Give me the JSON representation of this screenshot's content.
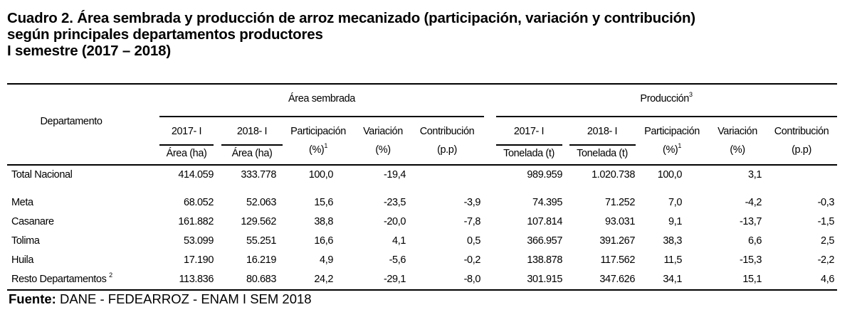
{
  "title": {
    "line1": "Cuadro 2. Área sembrada y producción de arroz mecanizado (participación, variación y contribución)",
    "line2": "según principales departamentos productores",
    "line3": "I semestre (2017 – 2018)"
  },
  "table": {
    "dept_header": "Departamento",
    "groups": [
      {
        "label": "Área sembrada",
        "sup": "",
        "columns": [
          {
            "top": "2017- I",
            "bottom": "Área (ha)"
          },
          {
            "top": "2018- I",
            "bottom": "Área (ha)"
          },
          {
            "top": "Participación",
            "bottom": "(%)",
            "sup": "1"
          },
          {
            "top": "Variación",
            "bottom": "(%)"
          },
          {
            "top": "Contribución",
            "bottom": "(p.p)"
          }
        ]
      },
      {
        "label": "Producción",
        "sup": "3",
        "columns": [
          {
            "top": "2017- I",
            "bottom": "Tonelada (t)"
          },
          {
            "top": "2018- I",
            "bottom": "Tonelada (t)"
          },
          {
            "top": "Participación",
            "bottom": "(%)",
            "sup": "1"
          },
          {
            "top": "Variación",
            "bottom": "(%)"
          },
          {
            "top": "Contribución",
            "bottom": "(p.p)"
          }
        ]
      }
    ],
    "rows": [
      {
        "dept": "Total Nacional",
        "sup": "",
        "values": [
          "414.059",
          "333.778",
          "100,0",
          "-19,4",
          "",
          "989.959",
          "1.020.738",
          "100,0",
          "3,1",
          ""
        ]
      },
      {
        "dept": "Meta",
        "sup": "",
        "values": [
          "68.052",
          "52.063",
          "15,6",
          "-23,5",
          "-3,9",
          "74.395",
          "71.252",
          "7,0",
          "-4,2",
          "-0,3"
        ]
      },
      {
        "dept": "Casanare",
        "sup": "",
        "values": [
          "161.882",
          "129.562",
          "38,8",
          "-20,0",
          "-7,8",
          "107.814",
          "93.031",
          "9,1",
          "-13,7",
          "-1,5"
        ]
      },
      {
        "dept": "Tolima",
        "sup": "",
        "values": [
          "53.099",
          "55.251",
          "16,6",
          "4,1",
          "0,5",
          "366.957",
          "391.267",
          "38,3",
          "6,6",
          "2,5"
        ]
      },
      {
        "dept": "Huila",
        "sup": "",
        "values": [
          "17.190",
          "16.219",
          "4,9",
          "-5,6",
          "-0,2",
          "138.878",
          "117.562",
          "11,5",
          "-15,3",
          "-2,2"
        ]
      },
      {
        "dept": "Resto Departamentos",
        "sup": "2",
        "values": [
          "113.836",
          "80.683",
          "24,2",
          "-29,1",
          "-8,0",
          "301.915",
          "347.626",
          "34,1",
          "15,1",
          "4,6"
        ]
      }
    ]
  },
  "source": {
    "label": "Fuente:",
    "text": " DANE - FEDEARROZ - ENAM I SEM 2018"
  }
}
